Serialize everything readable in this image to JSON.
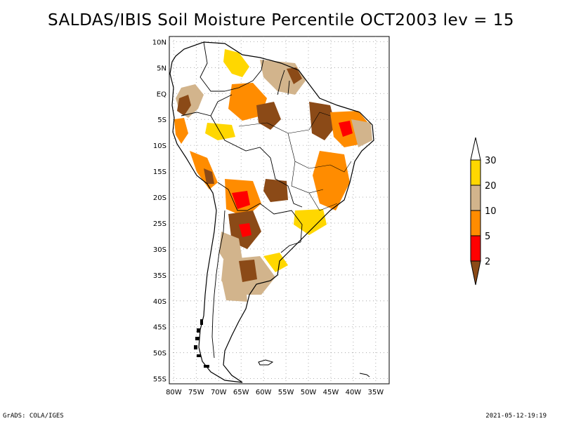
{
  "title": "SALDAS/IBIS Soil Moisture Percentile OCT2003 lev = 15",
  "map": {
    "lon_labels": [
      "80W",
      "75W",
      "70W",
      "65W",
      "60W",
      "55W",
      "50W",
      "45W",
      "40W",
      "35W"
    ],
    "lat_labels": [
      "10N",
      "5N",
      "EQ",
      "5S",
      "10S",
      "15S",
      "20S",
      "25S",
      "30S",
      "35S",
      "40S",
      "45S",
      "50S",
      "55S"
    ],
    "lon_range": [
      -81,
      -32
    ],
    "lat_range": [
      -56,
      11
    ],
    "grid": "dotted"
  },
  "colorbar": {
    "labels": [
      "2",
      "5",
      "10",
      "20",
      "30"
    ],
    "colors": {
      "lt2": "#8b4a17",
      "c2_5": "#ff0000",
      "c5_10": "#ff8c00",
      "c10_20": "#d2b48c",
      "c20_30": "#ffd700",
      "gt30": "#ffffff"
    }
  },
  "footer": {
    "left": "GrADS: COLA/IGES",
    "right": "2021-05-12-19:19"
  }
}
